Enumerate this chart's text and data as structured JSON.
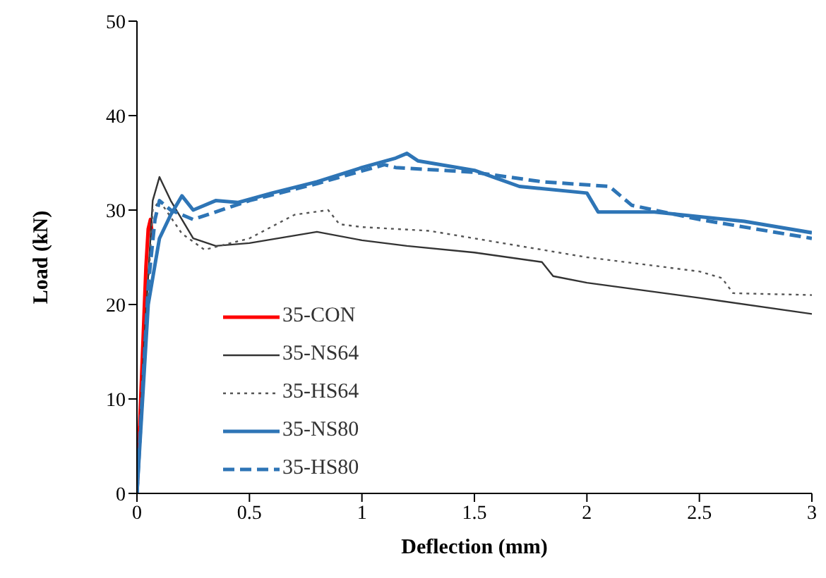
{
  "chart_data": {
    "type": "line",
    "xlabel": "Deflection (mm)",
    "ylabel": "Load (kN)",
    "xlim": [
      0,
      3
    ],
    "ylim": [
      0,
      50
    ],
    "xticks": [
      0,
      0.5,
      1,
      1.5,
      2,
      2.5,
      3
    ],
    "yticks": [
      0,
      10,
      20,
      30,
      40,
      50
    ],
    "grid": false,
    "marker": "none",
    "legend": "bottom left",
    "series": [
      {
        "name": "35-CON",
        "color": "#ff0000",
        "line_style": "solid",
        "x": [
          0,
          0.02,
          0.04,
          0.05,
          0.06,
          0.07
        ],
        "values": [
          0,
          12,
          24,
          28,
          29,
          27
        ]
      },
      {
        "name": "35-NS64",
        "color": "#333333",
        "line_style": "solid",
        "x": [
          0,
          0.03,
          0.07,
          0.1,
          0.15,
          0.25,
          0.35,
          0.5,
          0.8,
          1.0,
          1.2,
          1.5,
          1.8,
          1.85,
          2.0,
          2.5,
          3.0
        ],
        "values": [
          0,
          15,
          31,
          33.5,
          31,
          27,
          26.2,
          26.5,
          27.7,
          26.8,
          26.2,
          25.5,
          24.5,
          23,
          22.3,
          20.7,
          19
        ]
      },
      {
        "name": "35-HS64",
        "color": "#555555",
        "line_style": "dotted",
        "x": [
          0,
          0.04,
          0.07,
          0.1,
          0.2,
          0.3,
          0.5,
          0.7,
          0.85,
          0.9,
          1.0,
          1.3,
          1.5,
          2.0,
          2.5,
          2.6,
          2.65,
          3.0
        ],
        "values": [
          0,
          18,
          30,
          31,
          27.5,
          25.8,
          27,
          29.5,
          30,
          28.5,
          28.2,
          27.8,
          27,
          25,
          23.5,
          22.8,
          21.2,
          21
        ]
      },
      {
        "name": "35-NS80",
        "color": "#2e75b6",
        "line_style": "solid",
        "x": [
          0,
          0.05,
          0.1,
          0.15,
          0.2,
          0.25,
          0.35,
          0.45,
          0.6,
          0.8,
          1.0,
          1.15,
          1.2,
          1.25,
          1.5,
          1.7,
          2.0,
          2.05,
          2.3,
          2.7,
          3.0
        ],
        "values": [
          0,
          20,
          27,
          29.5,
          31.5,
          30,
          31,
          30.8,
          31.8,
          33,
          34.5,
          35.5,
          36,
          35.2,
          34.2,
          32.5,
          31.8,
          29.8,
          29.8,
          28.8,
          27.6
        ]
      },
      {
        "name": "35-HS80",
        "color": "#2e75b6",
        "line_style": "dashed",
        "x": [
          0,
          0.05,
          0.08,
          0.1,
          0.15,
          0.25,
          0.5,
          0.8,
          1.1,
          1.15,
          1.5,
          1.8,
          2.1,
          2.2,
          2.5,
          3.0
        ],
        "values": [
          0,
          22,
          29,
          31,
          30,
          29,
          31,
          32.8,
          34.8,
          34.5,
          34,
          33,
          32.5,
          30.5,
          29,
          27
        ]
      }
    ]
  }
}
